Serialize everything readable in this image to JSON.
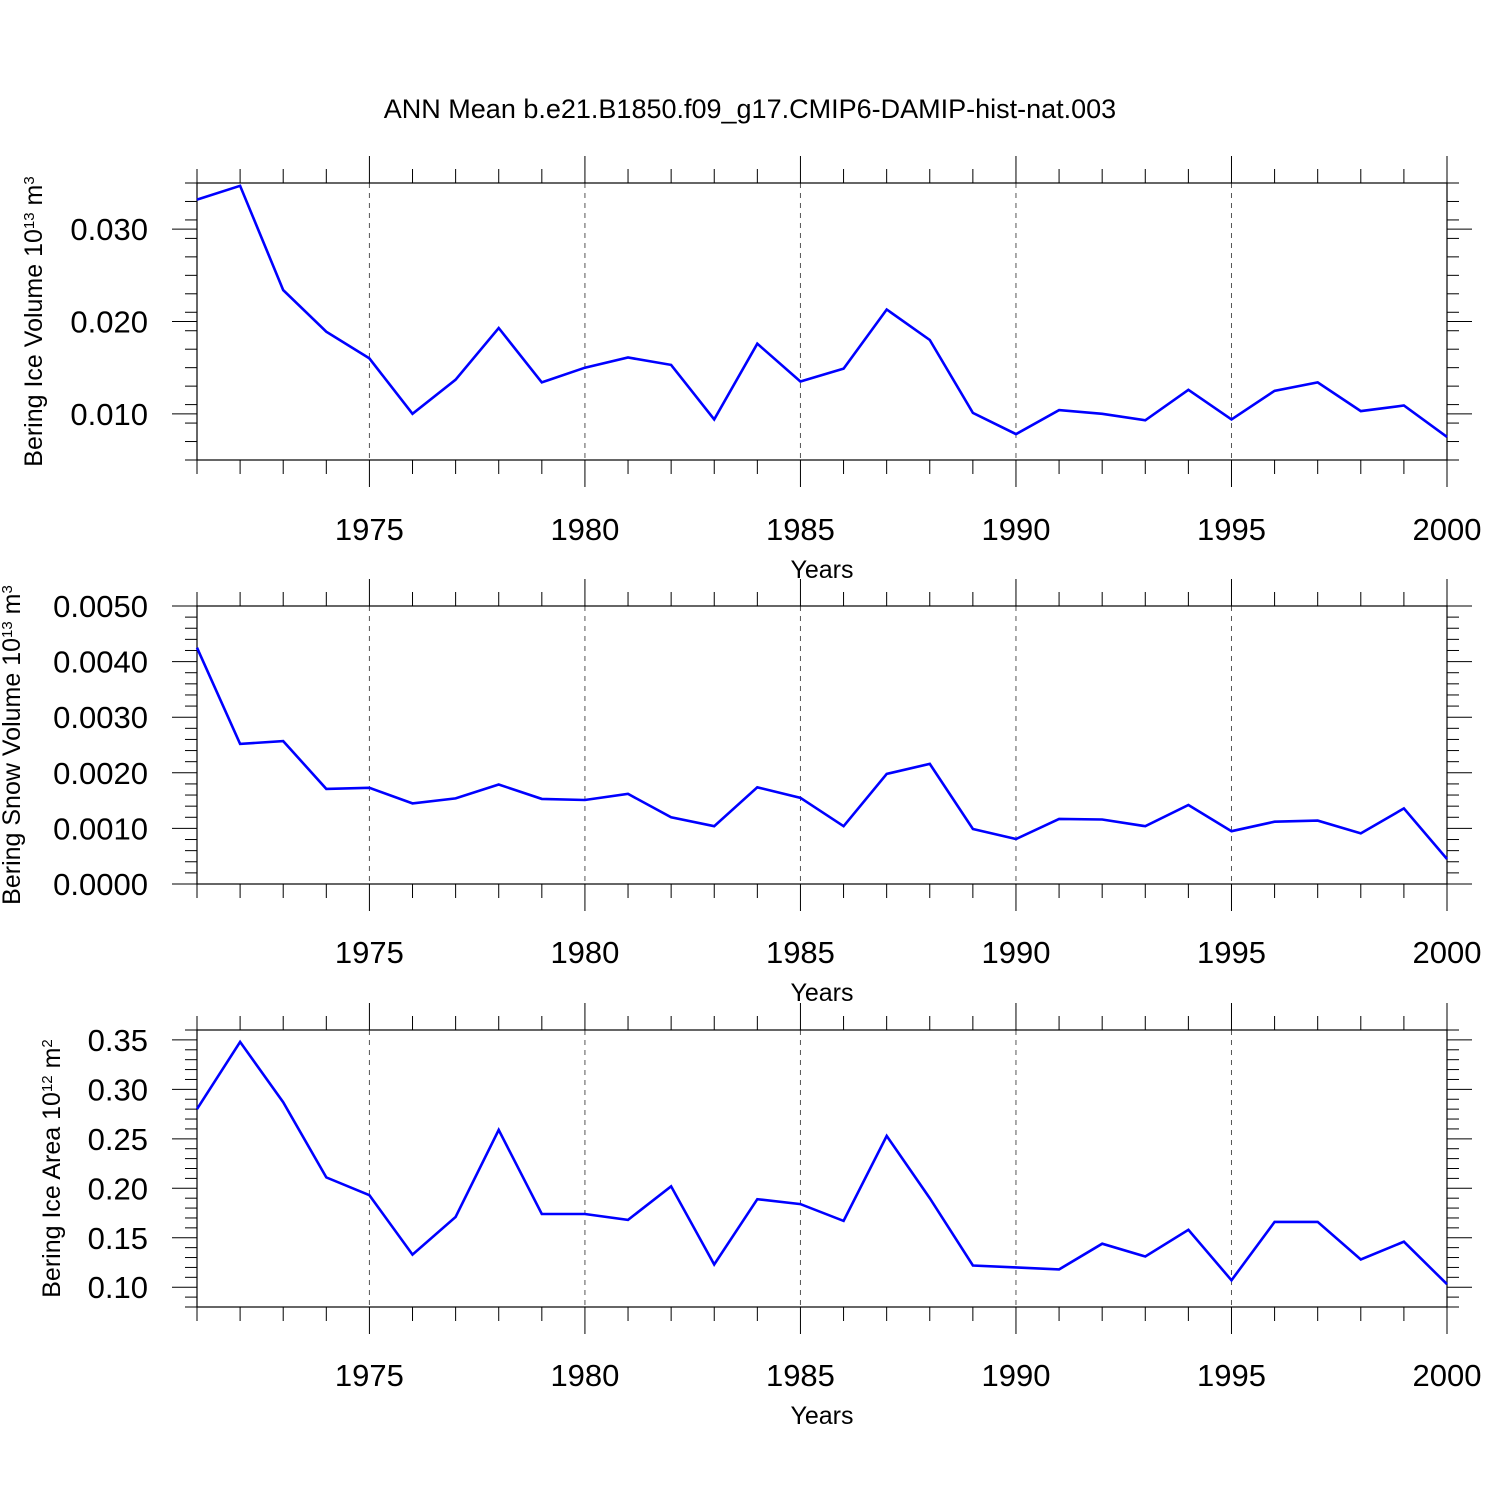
{
  "title": "ANN Mean b.e21.B1850.f09_g17.CMIP6-DAMIP-hist-nat.003",
  "chart_data": [
    {
      "type": "line",
      "ylabel": "Bering Ice Volume",
      "ylabel_scale": "10",
      "ylabel_exp": "13",
      "ylabel_unit": "m",
      "ylabel_unit_exp": "3",
      "xlabel": "Years",
      "xlim": [
        1971,
        2000
      ],
      "ylim": [
        0.005,
        0.035
      ],
      "x_ticks": [
        1975,
        1980,
        1985,
        1990,
        1995,
        2000
      ],
      "y_ticks": [
        0.01,
        0.02,
        0.03
      ],
      "y_tick_labels": [
        "0.010",
        "0.020",
        "0.030"
      ],
      "y_minor_step": 0.002,
      "color": "#0000ff",
      "grid": "dashed vertical at major x ticks",
      "series": [
        {
          "name": "Bering Ice Volume",
          "x": [
            1971,
            1972,
            1973,
            1974,
            1975,
            1976,
            1977,
            1978,
            1979,
            1980,
            1981,
            1982,
            1983,
            1984,
            1985,
            1986,
            1987,
            1988,
            1989,
            1990,
            1991,
            1992,
            1993,
            1994,
            1995,
            1996,
            1997,
            1998,
            1999,
            2000
          ],
          "values": [
            0.0332,
            0.0347,
            0.0234,
            0.0189,
            0.016,
            0.01,
            0.0137,
            0.0193,
            0.0134,
            0.015,
            0.0161,
            0.0153,
            0.0094,
            0.0176,
            0.0135,
            0.0149,
            0.0213,
            0.018,
            0.0101,
            0.0078,
            0.0104,
            0.01,
            0.0093,
            0.0126,
            0.0094,
            0.0125,
            0.0134,
            0.0103,
            0.0109,
            0.0075
          ]
        }
      ]
    },
    {
      "type": "line",
      "ylabel": "Bering Snow Volume",
      "ylabel_scale": "10",
      "ylabel_exp": "13",
      "ylabel_unit": "m",
      "ylabel_unit_exp": "3",
      "xlabel": "Years",
      "xlim": [
        1971,
        2000
      ],
      "ylim": [
        0.0,
        0.005
      ],
      "x_ticks": [
        1975,
        1980,
        1985,
        1990,
        1995,
        2000
      ],
      "y_ticks": [
        0.0,
        0.001,
        0.002,
        0.003,
        0.004,
        0.005
      ],
      "y_tick_labels": [
        "0.0000",
        "0.0010",
        "0.0020",
        "0.0030",
        "0.0040",
        "0.0050"
      ],
      "y_minor_step": 0.0002,
      "color": "#0000ff",
      "grid": "dashed vertical at major x ticks",
      "series": [
        {
          "name": "Bering Snow Volume",
          "x": [
            1971,
            1972,
            1973,
            1974,
            1975,
            1976,
            1977,
            1978,
            1979,
            1980,
            1981,
            1982,
            1983,
            1984,
            1985,
            1986,
            1987,
            1988,
            1989,
            1990,
            1991,
            1992,
            1993,
            1994,
            1995,
            1996,
            1997,
            1998,
            1999,
            2000
          ],
          "values": [
            0.00425,
            0.00252,
            0.00257,
            0.00171,
            0.00173,
            0.00145,
            0.00154,
            0.00179,
            0.00153,
            0.00151,
            0.00162,
            0.0012,
            0.00104,
            0.00174,
            0.00155,
            0.00104,
            0.00198,
            0.00216,
            0.00099,
            0.00081,
            0.00117,
            0.00116,
            0.00104,
            0.00142,
            0.00095,
            0.00112,
            0.00114,
            0.00091,
            0.00136,
            0.00045
          ]
        }
      ]
    },
    {
      "type": "line",
      "ylabel": "Bering Ice Area",
      "ylabel_scale": "10",
      "ylabel_exp": "12",
      "ylabel_unit": "m",
      "ylabel_unit_exp": "2",
      "xlabel": "Years",
      "xlim": [
        1971,
        2000
      ],
      "ylim": [
        0.08,
        0.36
      ],
      "x_ticks": [
        1975,
        1980,
        1985,
        1990,
        1995,
        2000
      ],
      "y_ticks": [
        0.1,
        0.15,
        0.2,
        0.25,
        0.3,
        0.35
      ],
      "y_tick_labels": [
        "0.10",
        "0.15",
        "0.20",
        "0.25",
        "0.30",
        "0.35"
      ],
      "y_minor_step": 0.01,
      "color": "#0000ff",
      "grid": "dashed vertical at major x ticks",
      "series": [
        {
          "name": "Bering Ice Area",
          "x": [
            1971,
            1972,
            1973,
            1974,
            1975,
            1976,
            1977,
            1978,
            1979,
            1980,
            1981,
            1982,
            1983,
            1984,
            1985,
            1986,
            1987,
            1988,
            1989,
            1990,
            1991,
            1992,
            1993,
            1994,
            1995,
            1996,
            1997,
            1998,
            1999,
            2000
          ],
          "values": [
            0.28,
            0.348,
            0.287,
            0.211,
            0.193,
            0.133,
            0.171,
            0.259,
            0.174,
            0.174,
            0.168,
            0.202,
            0.123,
            0.189,
            0.184,
            0.167,
            0.253,
            0.19,
            0.122,
            0.12,
            0.118,
            0.144,
            0.131,
            0.158,
            0.107,
            0.166,
            0.166,
            0.128,
            0.146,
            0.103
          ]
        }
      ]
    }
  ]
}
